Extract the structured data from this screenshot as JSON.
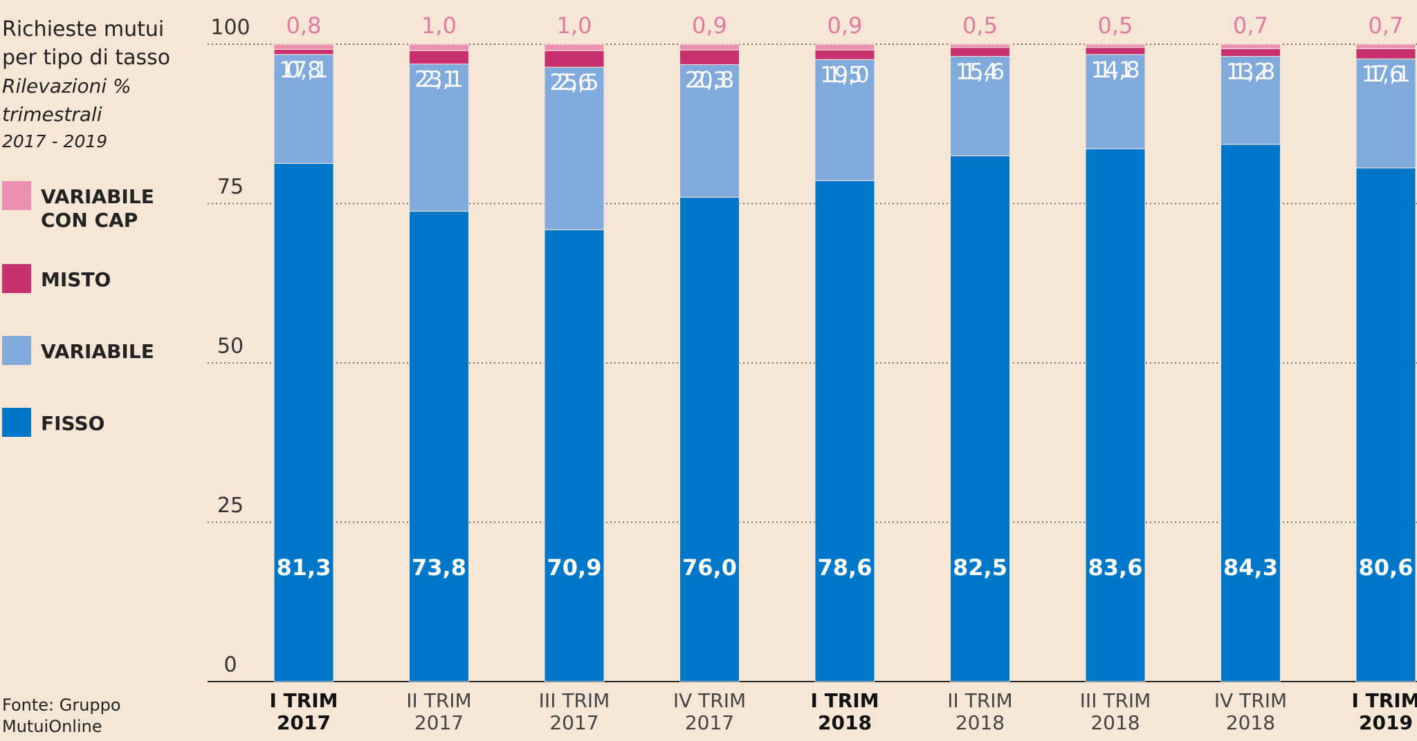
{
  "chart_data": {
    "type": "stacked_bar",
    "title": "Richieste mutui per tipo di tasso",
    "subtitle": "Rilevazioni % trimestrali",
    "period": "2017 - 2019",
    "source": "Fonte: Gruppo MutuiOnline",
    "categories": [
      [
        "I TRIM",
        "2017"
      ],
      [
        "II TRIM",
        "2017"
      ],
      [
        "III TRIM",
        "2017"
      ],
      [
        "IV TRIM",
        "2017"
      ],
      [
        "I TRIM",
        "2018"
      ],
      [
        "II TRIM",
        "2018"
      ],
      [
        "III TRIM",
        "2018"
      ],
      [
        "IV TRIM",
        "2018"
      ],
      [
        "I TRIM",
        "2019"
      ]
    ],
    "bold_categories": [
      0,
      4,
      8
    ],
    "series": [
      {
        "name": "FISSO",
        "color": "#0077c8",
        "values": [
          81.3,
          73.8,
          70.9,
          76.0,
          78.6,
          82.5,
          83.6,
          84.3,
          80.6
        ],
        "value_labels": [
          "81,3",
          "73,8",
          "70,9",
          "76,0",
          "78,6",
          "82,5",
          "83,6",
          "84,3",
          "80,6"
        ]
      },
      {
        "name": "VARIABILE",
        "color": "#80a9dc",
        "values": [
          17.1,
          23.1,
          25.5,
          20.8,
          19.0,
          15.6,
          14.8,
          13.8,
          17.1
        ],
        "value_labels": [
          "17,1",
          "23,1",
          "25,5",
          "20,8",
          "19,0",
          "15,6",
          "14,8",
          "13,8",
          "17,1"
        ]
      },
      {
        "name": "MISTO",
        "color": "#c8306f",
        "values": [
          0.8,
          2.1,
          2.6,
          2.3,
          1.5,
          1.4,
          1.1,
          1.2,
          1.6
        ],
        "value_labels": [
          "0,8",
          "2,1",
          "2,6",
          "2,3",
          "1,5",
          "1,4",
          "1,1",
          "1,2",
          "1,6"
        ]
      },
      {
        "name": "VARIABILE CON CAP",
        "color": "#ec91b2",
        "values": [
          0.8,
          1.0,
          1.0,
          0.9,
          0.9,
          0.5,
          0.5,
          0.7,
          0.7
        ],
        "value_labels": [
          "0,8",
          "1,0",
          "1,0",
          "0,9",
          "0,9",
          "0,5",
          "0,5",
          "0,7",
          "0,7"
        ]
      }
    ],
    "ylim": [
      0,
      100
    ],
    "yticks": [
      0,
      25,
      50,
      75,
      100
    ],
    "grid": true
  }
}
